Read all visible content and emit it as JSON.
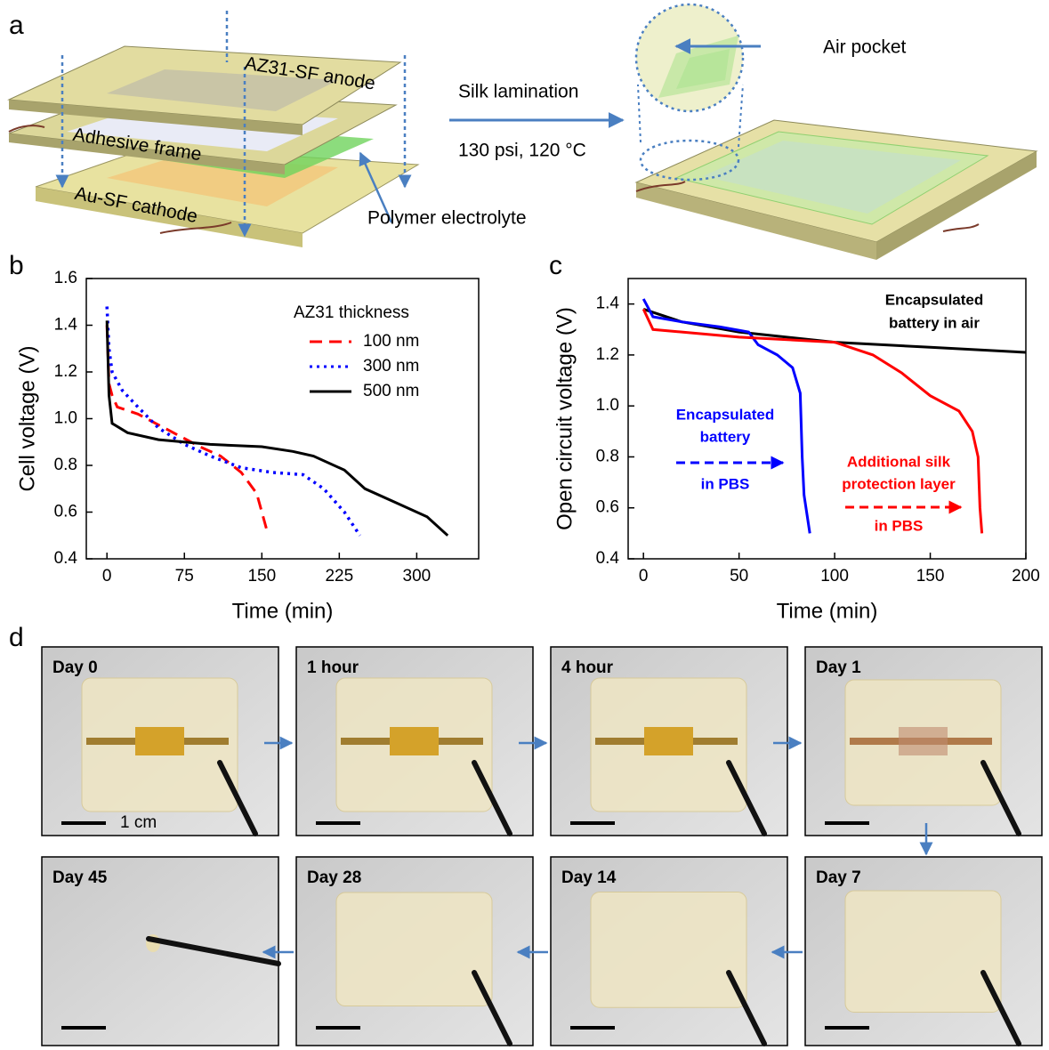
{
  "panel_letters": [
    "a",
    "b",
    "c",
    "d"
  ],
  "diagram": {
    "layers": [
      "AZ31-SF anode",
      "Adhesive frame",
      "Au-SF cathode"
    ],
    "electrolyte": "Polymer electrolyte",
    "process": "Silk lamination",
    "conditions": "130 psi, 120 °C",
    "inset": "Air pocket"
  },
  "chart_data": [
    {
      "type": "line",
      "y_label": "Cell voltage (V)",
      "x_label": "Time (min)",
      "xlim": [
        -20,
        360
      ],
      "xticks": [
        0,
        75,
        150,
        225,
        300
      ],
      "ylim": [
        0.4,
        1.6
      ],
      "yticks": [
        0.4,
        0.6,
        0.8,
        {
          "value": 1,
          "label": "1.0"
        },
        1.2,
        1.4,
        1.6
      ],
      "legend_title": "AZ31 thickness",
      "series": [
        {
          "name": "100 nm",
          "color": "#ff0000",
          "dash": "dashed",
          "x": [
            0,
            2,
            5,
            10,
            30,
            60,
            90,
            110,
            130,
            145,
            155
          ],
          "values": [
            1.4,
            1.15,
            1.1,
            1.05,
            1.02,
            0.95,
            0.88,
            0.84,
            0.77,
            0.68,
            0.52
          ]
        },
        {
          "name": "300 nm",
          "color": "#0000ff",
          "dash": "dotted",
          "x": [
            0,
            2,
            5,
            15,
            30,
            50,
            75,
            100,
            130,
            160,
            190,
            210,
            230,
            245
          ],
          "values": [
            1.48,
            1.3,
            1.2,
            1.12,
            1.05,
            0.96,
            0.89,
            0.84,
            0.79,
            0.77,
            0.76,
            0.7,
            0.6,
            0.5
          ]
        },
        {
          "name": "500 nm",
          "color": "#000000",
          "dash": "solid",
          "x": [
            0,
            2,
            5,
            20,
            50,
            100,
            150,
            180,
            200,
            230,
            250,
            280,
            310,
            330
          ],
          "values": [
            1.42,
            1.1,
            0.98,
            0.94,
            0.91,
            0.89,
            0.88,
            0.86,
            0.84,
            0.78,
            0.7,
            0.64,
            0.58,
            0.5
          ]
        }
      ]
    },
    {
      "type": "line",
      "y_label": "Open circuit voltage (V)",
      "x_label": "Time (min)",
      "xlim": [
        -8,
        200
      ],
      "xticks": [
        0,
        50,
        100,
        150,
        200
      ],
      "ylim": [
        0.4,
        1.5
      ],
      "yticks": [
        0.4,
        0.6,
        0.8,
        {
          "value": 1,
          "label": "1.0"
        },
        1.2,
        1.4
      ],
      "series": [
        {
          "color": "#000000",
          "x": [
            0,
            20,
            50,
            100,
            150,
            200
          ],
          "values": [
            1.38,
            1.33,
            1.29,
            1.25,
            1.23,
            1.21
          ]
        },
        {
          "color": "#0000ff",
          "x": [
            0,
            5,
            20,
            40,
            55,
            60,
            70,
            78,
            82,
            83,
            84,
            87
          ],
          "values": [
            1.42,
            1.35,
            1.33,
            1.31,
            1.29,
            1.24,
            1.2,
            1.15,
            1.05,
            0.8,
            0.65,
            0.5
          ]
        },
        {
          "color": "#ff0000",
          "x": [
            0,
            5,
            20,
            50,
            100,
            120,
            135,
            150,
            165,
            172,
            175,
            176,
            177
          ],
          "values": [
            1.38,
            1.3,
            1.29,
            1.27,
            1.25,
            1.2,
            1.13,
            1.04,
            0.98,
            0.9,
            0.8,
            0.6,
            0.5
          ]
        }
      ],
      "annotations": [
        {
          "lines": [
            "Encapsulated",
            "battery in air"
          ],
          "color": "#000000"
        },
        {
          "lines": [
            "Encapsulated",
            "battery",
            "in PBS"
          ],
          "color": "#0000ff"
        },
        {
          "lines": [
            "Additional silk",
            "protection layer",
            "in PBS"
          ],
          "color": "#ff0000"
        }
      ]
    }
  ],
  "photos": {
    "labels": [
      "Day 0",
      "1 hour",
      "4 hour",
      "Day 1",
      "Day 7",
      "Day 14",
      "Day 28",
      "Day 45"
    ],
    "scale_bar": "1 cm"
  }
}
